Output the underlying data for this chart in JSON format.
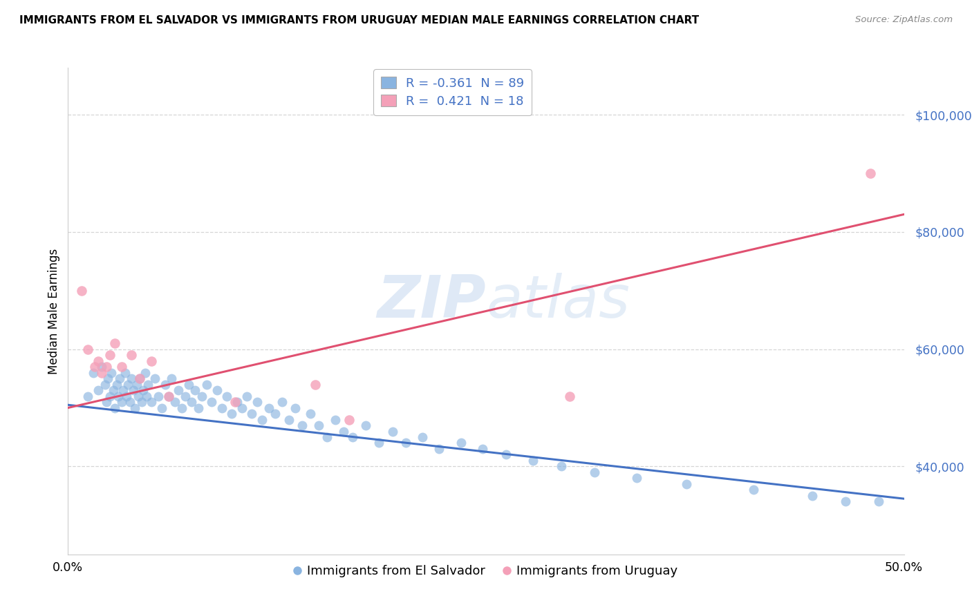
{
  "title": "IMMIGRANTS FROM EL SALVADOR VS IMMIGRANTS FROM URUGUAY MEDIAN MALE EARNINGS CORRELATION CHART",
  "source": "Source: ZipAtlas.com",
  "ylabel": "Median Male Earnings",
  "xlim": [
    0.0,
    0.5
  ],
  "ylim": [
    25000,
    108000
  ],
  "yticks": [
    40000,
    60000,
    80000,
    100000
  ],
  "ytick_labels": [
    "$40,000",
    "$60,000",
    "$80,000",
    "$100,000"
  ],
  "xtick_positions": [
    0.0,
    0.1,
    0.2,
    0.3,
    0.4,
    0.5
  ],
  "xtick_labels": [
    "0.0%",
    "",
    "",
    "",
    "",
    "50.0%"
  ],
  "legend_label1": "Immigrants from El Salvador",
  "legend_label2": "Immigrants from Uruguay",
  "color_salvador": "#8ab4e0",
  "color_uruguay": "#f4a0b8",
  "color_line_salvador": "#4472c4",
  "color_line_uruguay": "#e05070",
  "background_color": "#ffffff",
  "watermark_zip": "ZIP",
  "watermark_atlas": "atlas",
  "R_salvador": -0.361,
  "N_salvador": 89,
  "R_uruguay": 0.421,
  "N_uruguay": 18,
  "salvador_x": [
    0.012,
    0.015,
    0.018,
    0.02,
    0.022,
    0.023,
    0.024,
    0.025,
    0.026,
    0.027,
    0.028,
    0.029,
    0.03,
    0.031,
    0.032,
    0.033,
    0.034,
    0.035,
    0.036,
    0.037,
    0.038,
    0.039,
    0.04,
    0.041,
    0.042,
    0.043,
    0.044,
    0.045,
    0.046,
    0.047,
    0.048,
    0.05,
    0.052,
    0.054,
    0.056,
    0.058,
    0.06,
    0.062,
    0.064,
    0.066,
    0.068,
    0.07,
    0.072,
    0.074,
    0.076,
    0.078,
    0.08,
    0.083,
    0.086,
    0.089,
    0.092,
    0.095,
    0.098,
    0.101,
    0.104,
    0.107,
    0.11,
    0.113,
    0.116,
    0.12,
    0.124,
    0.128,
    0.132,
    0.136,
    0.14,
    0.145,
    0.15,
    0.155,
    0.16,
    0.165,
    0.17,
    0.178,
    0.186,
    0.194,
    0.202,
    0.212,
    0.222,
    0.235,
    0.248,
    0.262,
    0.278,
    0.295,
    0.315,
    0.34,
    0.37,
    0.41,
    0.445,
    0.465,
    0.485
  ],
  "salvador_y": [
    52000,
    56000,
    53000,
    57000,
    54000,
    51000,
    55000,
    52000,
    56000,
    53000,
    50000,
    54000,
    52000,
    55000,
    51000,
    53000,
    56000,
    52000,
    54000,
    51000,
    55000,
    53000,
    50000,
    54000,
    52000,
    55000,
    51000,
    53000,
    56000,
    52000,
    54000,
    51000,
    55000,
    52000,
    50000,
    54000,
    52000,
    55000,
    51000,
    53000,
    50000,
    52000,
    54000,
    51000,
    53000,
    50000,
    52000,
    54000,
    51000,
    53000,
    50000,
    52000,
    49000,
    51000,
    50000,
    52000,
    49000,
    51000,
    48000,
    50000,
    49000,
    51000,
    48000,
    50000,
    47000,
    49000,
    47000,
    45000,
    48000,
    46000,
    45000,
    47000,
    44000,
    46000,
    44000,
    45000,
    43000,
    44000,
    43000,
    42000,
    41000,
    40000,
    39000,
    38000,
    37000,
    36000,
    35000,
    34000,
    34000
  ],
  "uruguay_x": [
    0.008,
    0.012,
    0.016,
    0.018,
    0.02,
    0.023,
    0.025,
    0.028,
    0.032,
    0.038,
    0.043,
    0.05,
    0.06,
    0.1,
    0.148,
    0.168,
    0.3,
    0.48
  ],
  "uruguay_y": [
    70000,
    60000,
    57000,
    58000,
    56000,
    57000,
    59000,
    61000,
    57000,
    59000,
    55000,
    58000,
    52000,
    51000,
    54000,
    48000,
    52000,
    90000
  ],
  "line_salvador_x0": 0.0,
  "line_salvador_y0": 50500,
  "line_salvador_x1": 0.5,
  "line_salvador_y1": 34500,
  "line_uruguay_x0": 0.0,
  "line_uruguay_y0": 50000,
  "line_uruguay_x1": 0.5,
  "line_uruguay_y1": 83000
}
